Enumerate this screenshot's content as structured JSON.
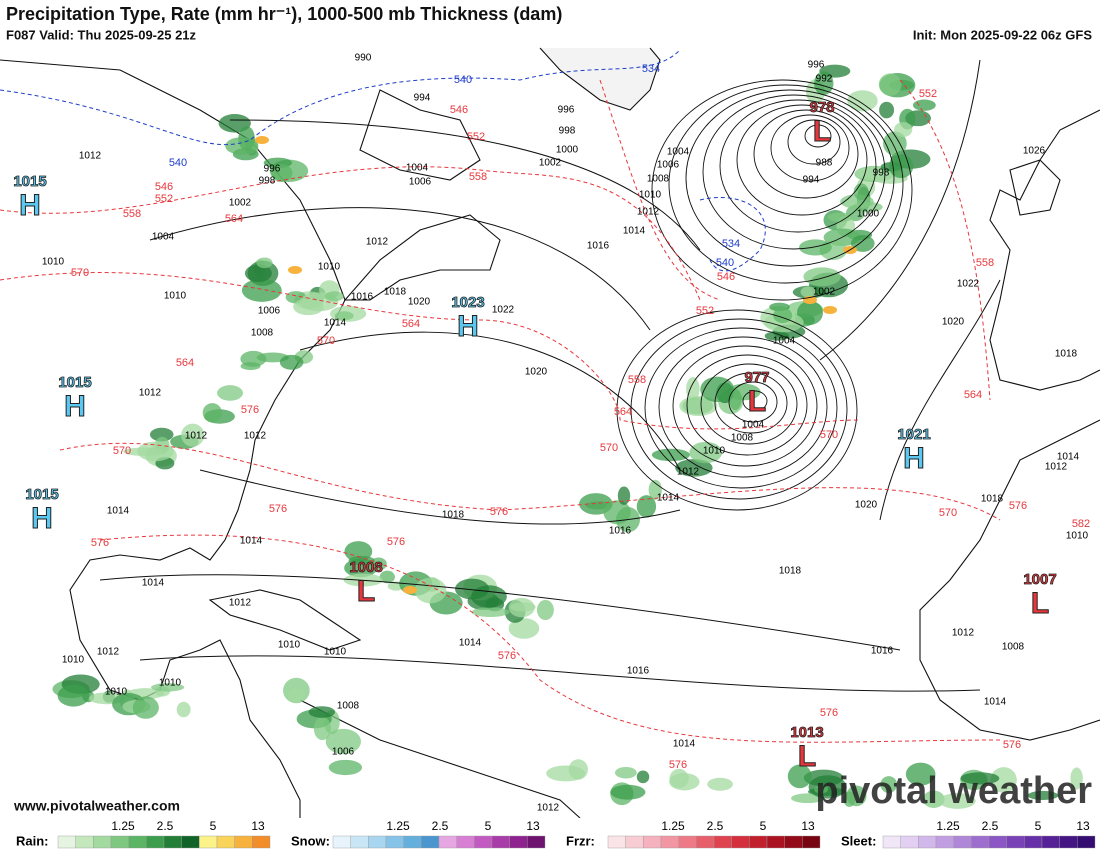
{
  "header": {
    "title": "Precipitation Type, Rate (mm hr⁻¹), 1000-500 mb Thickness (dam)",
    "valid": "F087 Valid: Thu 2025-09-25 21z",
    "init": "Init: Mon 2025-09-22 06z GFS"
  },
  "map": {
    "centers": [
      {
        "type": "H",
        "pressure": 1015
      },
      {
        "type": "H",
        "pressure": 1015
      },
      {
        "type": "H",
        "pressure": 1015
      },
      {
        "type": "H",
        "pressure": 1023
      },
      {
        "type": "H",
        "pressure": 1021
      },
      {
        "type": "L",
        "pressure": 978
      },
      {
        "type": "L",
        "pressure": 977
      },
      {
        "type": "L",
        "pressure": 1008
      },
      {
        "type": "L",
        "pressure": 1007
      },
      {
        "type": "L",
        "pressure": 1013
      }
    ],
    "isobar_labels": [
      990,
      994,
      996,
      998,
      1000,
      1002,
      1004,
      1006,
      1008,
      1010,
      1012,
      1014,
      1016,
      996,
      992,
      988,
      994,
      998,
      1000,
      1002,
      1004,
      1004,
      1008,
      1010,
      1012,
      1014,
      1016,
      1018,
      1018,
      1020,
      1022,
      1020,
      1018,
      1016,
      1014,
      1012,
      1010,
      1006,
      1008,
      1004,
      1006,
      1004,
      1002,
      998,
      996,
      1012,
      1010,
      1010,
      1012,
      1012,
      1012,
      1014,
      1014,
      1014,
      1012,
      1012,
      1010,
      1010,
      1010,
      1010,
      1010,
      1008,
      1006,
      1014,
      1016,
      1014,
      1016,
      1020,
      1018,
      1012,
      1014,
      1010,
      1012,
      1008,
      1014,
      1018,
      1020,
      1022,
      1026,
      1012
    ],
    "thickness_labels": [
      552,
      546,
      552,
      558,
      546,
      552,
      558,
      564,
      570,
      564,
      570,
      564,
      552,
      558,
      564,
      570,
      570,
      564,
      558,
      576,
      570,
      576,
      576,
      576,
      576,
      576,
      576,
      576,
      576,
      570,
      576,
      582,
      546
    ],
    "thickness_labels_cold": [
      540,
      534,
      540,
      534,
      540
    ]
  },
  "legend": [
    {
      "label": "Rain:",
      "ticks": [
        1.25,
        2.5,
        5,
        13
      ],
      "colors": [
        "#e4f4e0",
        "#c4e8bc",
        "#a3daa0",
        "#7fc881",
        "#5cb465",
        "#3c9e4c",
        "#237f37",
        "#12632a",
        "#fbf28a",
        "#f9d35a",
        "#f6b23c",
        "#f28d2a"
      ]
    },
    {
      "label": "Snow:",
      "ticks": [
        1.25,
        2.5,
        5,
        13
      ],
      "colors": [
        "#e8f4fb",
        "#c9e6f6",
        "#a8d6f0",
        "#86c3e8",
        "#65afdd",
        "#4c96cf",
        "#e6a6e2",
        "#d67fd3",
        "#c25ac2",
        "#a93ca9",
        "#8e238f",
        "#6e1470"
      ]
    },
    {
      "label": "Frzr:",
      "ticks": [
        1.25,
        2.5,
        5,
        13
      ],
      "colors": [
        "#fbe4e8",
        "#f8ccd3",
        "#f5b1bd",
        "#f296a4",
        "#ee7a88",
        "#e85f6c",
        "#e04350",
        "#d42f3c",
        "#c21f2d",
        "#ac1322",
        "#930a18",
        "#780411"
      ]
    },
    {
      "label": "Sleet:",
      "ticks": [
        1.25,
        2.5,
        5,
        13
      ],
      "colors": [
        "#f1e6f8",
        "#e2cff1",
        "#d2b7ea",
        "#c19ee2",
        "#b086d9",
        "#9e6ecf",
        "#8c57c4",
        "#7a42b7",
        "#6830a8",
        "#562197",
        "#451584",
        "#350c70"
      ]
    }
  ],
  "footer": {
    "website": "www.pivotalweather.com",
    "watermark": "pivotal weather"
  }
}
